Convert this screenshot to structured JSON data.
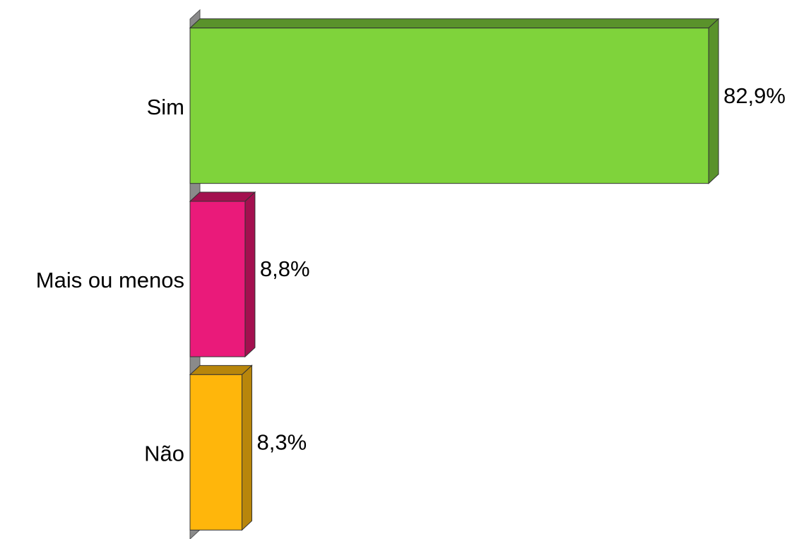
{
  "chart_data": {
    "type": "bar",
    "orientation": "horizontal",
    "three_d": true,
    "categories": [
      "Sim",
      "Mais ou menos",
      "Não"
    ],
    "values": [
      82.9,
      8.8,
      8.3
    ],
    "value_labels": [
      "82,9%",
      "8,8%",
      "8,3%"
    ],
    "colors": [
      "#7fd33b",
      "#ea1a7a",
      "#ffb60b"
    ],
    "side_colors": [
      "#5a922b",
      "#a3104f",
      "#b8860b"
    ]
  }
}
